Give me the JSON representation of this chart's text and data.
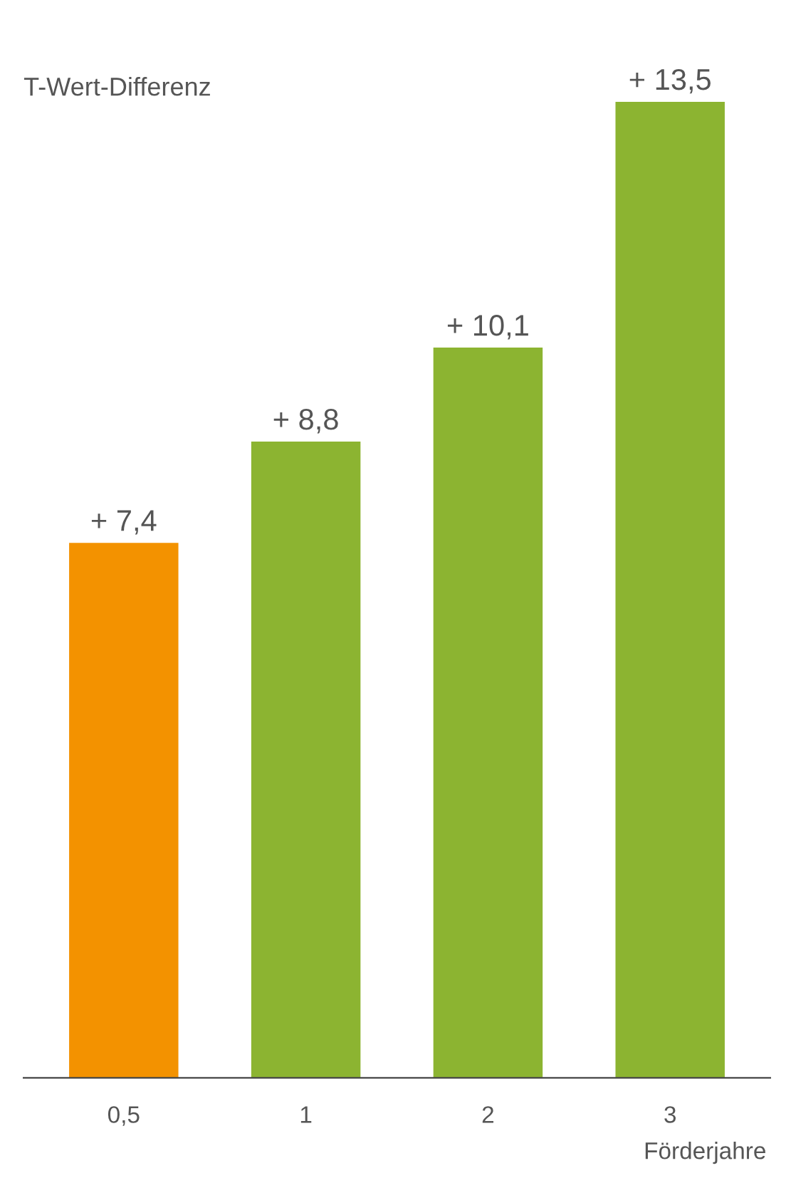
{
  "chart_data": {
    "type": "bar",
    "ylabel": "T-Wert-Differenz",
    "xlabel": "Förderjahre",
    "categories": [
      "0,5",
      "1",
      "2",
      "3"
    ],
    "values": [
      7.4,
      8.8,
      10.1,
      13.5
    ],
    "colors": [
      "#f39200",
      "#8cb431",
      "#8cb431",
      "#8cb431"
    ],
    "value_labels": [
      "+ 7,4",
      "+ 8,8",
      "+ 10,1",
      "+ 13,5"
    ],
    "tick_labels": "x",
    "grid": false,
    "legend": false
  }
}
